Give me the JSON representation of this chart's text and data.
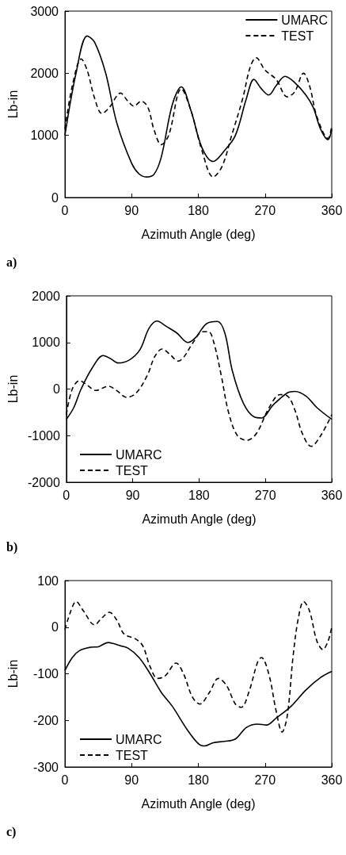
{
  "chart_data": [
    {
      "type": "line",
      "xlabel": "Azimuth Angle (deg)",
      "ylabel": "Lb-in",
      "annotations": [
        "a)"
      ],
      "xlim": [
        0,
        360
      ],
      "xticks": [
        0,
        90,
        180,
        270,
        360
      ],
      "ylim": [
        0,
        3000
      ],
      "yticks": [
        0,
        1000,
        2000,
        3000
      ],
      "grid": false,
      "legend": "top right",
      "marker": "none",
      "series": [
        {
          "name": "UMARC",
          "color": "#000000",
          "line_style": "solid",
          "x": [
            0,
            15,
            30,
            40,
            55,
            70,
            90,
            100,
            110,
            120,
            130,
            145,
            157,
            170,
            185,
            200,
            215,
            230,
            245,
            255,
            265,
            275,
            285,
            297,
            310,
            325,
            335,
            345,
            355,
            360
          ],
          "values": [
            1000,
            2000,
            2600,
            2500,
            2000,
            1200,
            550,
            380,
            330,
            370,
            650,
            1500,
            1780,
            1400,
            800,
            580,
            750,
            1000,
            1600,
            1900,
            1750,
            1650,
            1800,
            1950,
            1850,
            1650,
            1450,
            1100,
            930,
            1100
          ]
        },
        {
          "name": "TEST",
          "color": "#000000",
          "line_style": "dashed",
          "x": [
            0,
            10,
            22,
            30,
            40,
            50,
            60,
            75,
            85,
            93,
            103,
            112,
            120,
            130,
            140,
            157,
            170,
            185,
            200,
            212,
            225,
            240,
            250,
            258,
            270,
            285,
            300,
            310,
            322,
            330,
            340,
            355,
            360
          ],
          "values": [
            1100,
            1800,
            2230,
            2050,
            1600,
            1350,
            1450,
            1680,
            1550,
            1470,
            1550,
            1450,
            1100,
            850,
            1000,
            1750,
            1400,
            750,
            330,
            500,
            1000,
            1600,
            2100,
            2250,
            2050,
            1900,
            1620,
            1700,
            2000,
            1800,
            1300,
            950,
            1150
          ]
        }
      ]
    },
    {
      "type": "line",
      "xlabel": "Azimuth Angle (deg)",
      "ylabel": "Lb-in",
      "annotations": [
        "b)"
      ],
      "xlim": [
        0,
        360
      ],
      "xticks": [
        0,
        90,
        180,
        270,
        360
      ],
      "ylim": [
        -2000,
        2000
      ],
      "yticks": [
        -2000,
        -1000,
        0,
        1000,
        2000
      ],
      "grid": false,
      "legend": "bottom left",
      "marker": "none",
      "series": [
        {
          "name": "UMARC",
          "color": "#000000",
          "line_style": "solid",
          "x": [
            0,
            10,
            20,
            35,
            50,
            60,
            70,
            85,
            100,
            112,
            123,
            135,
            150,
            165,
            175,
            190,
            205,
            215,
            225,
            240,
            255,
            265,
            280,
            300,
            310,
            325,
            340,
            360
          ],
          "values": [
            -650,
            -400,
            0,
            450,
            720,
            650,
            560,
            620,
            850,
            1300,
            1460,
            1350,
            1200,
            1000,
            1100,
            1400,
            1450,
            1200,
            400,
            -300,
            -600,
            -620,
            -350,
            -80,
            -50,
            -150,
            -400,
            -650
          ]
        },
        {
          "name": "TEST",
          "color": "#000000",
          "line_style": "dashed",
          "x": [
            0,
            8,
            18,
            27,
            40,
            57,
            68,
            82,
            95,
            110,
            120,
            130,
            140,
            152,
            160,
            172,
            185,
            193,
            200,
            210,
            220,
            232,
            245,
            258,
            275,
            290,
            300,
            310,
            320,
            332,
            345,
            360
          ],
          "values": [
            -550,
            0,
            180,
            100,
            -30,
            60,
            -30,
            -180,
            -80,
            300,
            700,
            860,
            750,
            600,
            700,
            1000,
            1230,
            1230,
            1000,
            300,
            -500,
            -1000,
            -1100,
            -950,
            -400,
            -120,
            -150,
            -450,
            -950,
            -1230,
            -1000,
            -550
          ]
        }
      ]
    },
    {
      "type": "line",
      "xlabel": "Azimuth Angle (deg)",
      "ylabel": "Lb-in",
      "annotations": [
        "c)"
      ],
      "xlim": [
        0,
        360
      ],
      "xticks": [
        0,
        90,
        180,
        270,
        360
      ],
      "ylim": [
        -300,
        100
      ],
      "yticks": [
        -300,
        -200,
        -100,
        0,
        100
      ],
      "grid": false,
      "legend": "bottom left",
      "marker": "none",
      "series": [
        {
          "name": "UMARC",
          "color": "#000000",
          "line_style": "solid",
          "x": [
            0,
            10,
            20,
            35,
            45,
            58,
            65,
            75,
            85,
            100,
            115,
            130,
            145,
            165,
            180,
            188,
            200,
            215,
            230,
            245,
            260,
            272,
            285,
            305,
            325,
            345,
            360
          ],
          "values": [
            -93,
            -65,
            -50,
            -43,
            -42,
            -33,
            -35,
            -40,
            -45,
            -65,
            -100,
            -140,
            -170,
            -220,
            -250,
            -255,
            -248,
            -245,
            -240,
            -215,
            -208,
            -210,
            -195,
            -170,
            -135,
            -108,
            -95
          ]
        },
        {
          "name": "TEST",
          "color": "#000000",
          "line_style": "dashed",
          "x": [
            0,
            8,
            15,
            25,
            40,
            50,
            60,
            70,
            80,
            95,
            105,
            115,
            125,
            135,
            150,
            160,
            172,
            182,
            195,
            207,
            218,
            230,
            238,
            248,
            260,
            265,
            275,
            285,
            293,
            300,
            308,
            315,
            322,
            330,
            340,
            348,
            355,
            360
          ],
          "values": [
            -5,
            35,
            55,
            35,
            5,
            20,
            32,
            15,
            -15,
            -25,
            -40,
            -85,
            -110,
            -105,
            -77,
            -100,
            -150,
            -165,
            -140,
            -110,
            -125,
            -165,
            -172,
            -140,
            -75,
            -65,
            -100,
            -180,
            -225,
            -190,
            -60,
            20,
            55,
            35,
            -30,
            -48,
            -30,
            0
          ]
        }
      ]
    }
  ]
}
